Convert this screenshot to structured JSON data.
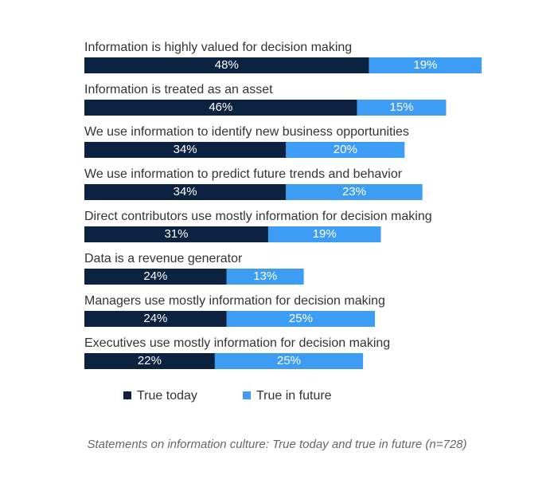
{
  "chart_data": {
    "type": "bar",
    "categories": [
      "Information is highly valued for decision making",
      "Information is treated as an asset",
      "We use information to identify new business opportunities",
      "We use information to predict future trends and behavior",
      "Direct contributors use mostly information for decision making",
      "Data is a revenue generator",
      "Managers use mostly information for decision making",
      "Executives use mostly information for decision making"
    ],
    "series": [
      {
        "name": "True today",
        "color": "#0b2341",
        "values": [
          48,
          46,
          34,
          34,
          31,
          24,
          24,
          22
        ],
        "value_labels": [
          "48%",
          "46%",
          "34%",
          "34%",
          "31%",
          "24%",
          "24%",
          "22%"
        ]
      },
      {
        "name": "True in future",
        "color": "#3d9df5",
        "values": [
          19,
          15,
          20,
          23,
          19,
          13,
          25,
          25
        ],
        "value_labels": [
          "19%",
          "15%",
          "20%",
          "23%",
          "19%",
          "13%",
          "25%",
          "25%"
        ]
      }
    ],
    "caption": "Statements on information culture: True today and true in future (n=728)"
  }
}
